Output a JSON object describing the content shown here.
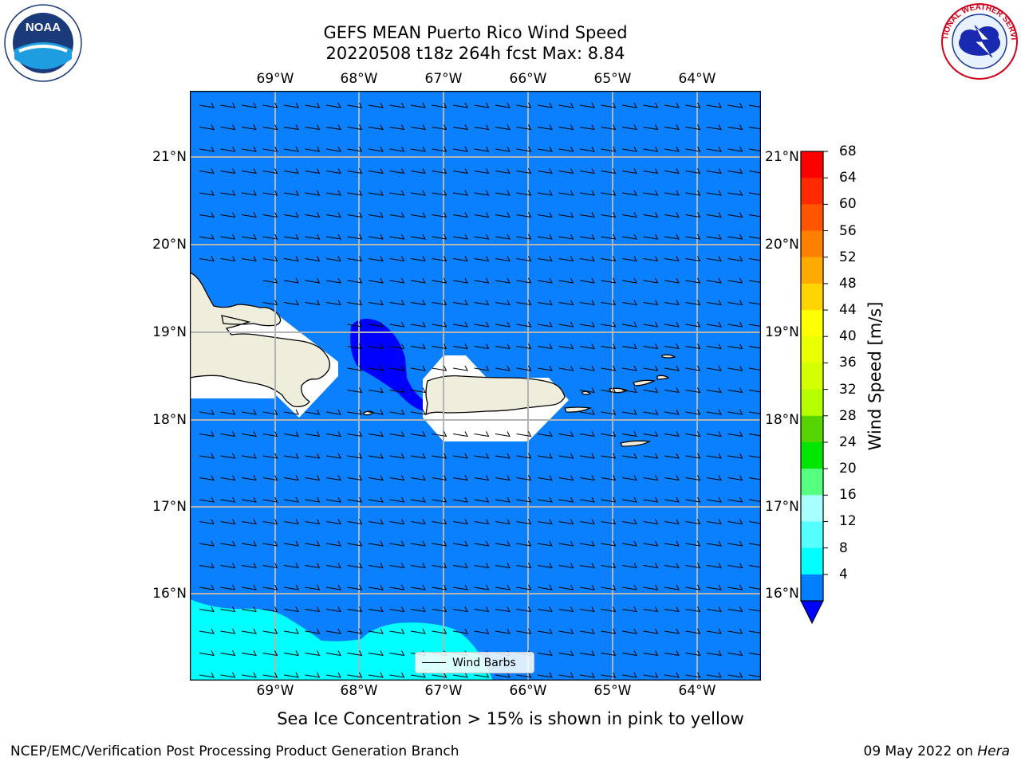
{
  "title": {
    "line1": "GEFS MEAN Puerto Rico Wind Speed",
    "line2": "20220508 t18z 264h fcst   Max: 8.84"
  },
  "axes": {
    "lon_labels": [
      "69°W",
      "68°W",
      "67°W",
      "66°W",
      "65°W",
      "64°W"
    ],
    "lat_labels": [
      "21°N",
      "20°N",
      "19°N",
      "18°N",
      "17°N",
      "16°N"
    ]
  },
  "colorbar": {
    "title": "Wind Speed [m/s]",
    "ticks": [
      "68",
      "64",
      "60",
      "56",
      "52",
      "48",
      "44",
      "40",
      "36",
      "32",
      "28",
      "24",
      "20",
      "16",
      "12",
      "8",
      "4"
    ],
    "colors": [
      "#ff0000",
      "#ff2a00",
      "#ff5500",
      "#ff8000",
      "#ffaa00",
      "#ffd400",
      "#ffff00",
      "#eaff00",
      "#d4ff00",
      "#b6ff00",
      "#55d400",
      "#00e600",
      "#55ff80",
      "#a8ffff",
      "#55ffff",
      "#00ffff",
      "#0080ff"
    ],
    "extend_color": "#0000ff"
  },
  "map": {
    "ocean_color": "#0a80ff",
    "low_wind_color": "#0000ff",
    "high_wind_color": "#00ffff",
    "land_color": "#efeddc",
    "mask_color": "#ffffff"
  },
  "legend_label": "Wind Barbs",
  "note": "Sea Ice Concentration > 15% is shown in pink to yellow",
  "footer": {
    "left": "NCEP/EMC/Verification Post Processing Product Generation Branch",
    "date": "09 May 2022 on",
    "machine": "Hera"
  },
  "logos": {
    "noaa_text": "NOAA",
    "nws_text": "NATIONAL WEATHER SERVICE"
  }
}
